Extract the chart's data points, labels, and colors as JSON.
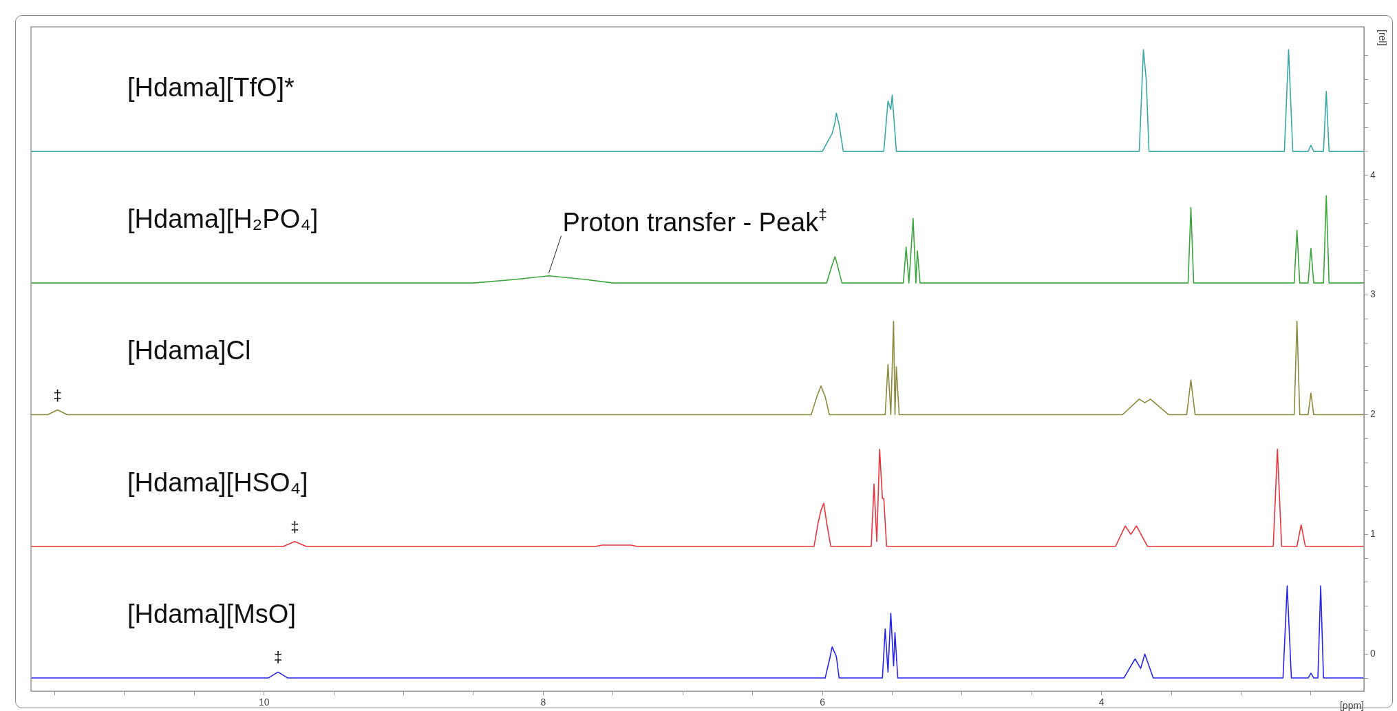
{
  "chart_data": {
    "type": "line",
    "xlabel": "[ppm]",
    "ylabel": "[rel]",
    "xlim": [
      11.67,
      2.12
    ],
    "xticks": [
      {
        "value": 11.5,
        "label": null
      },
      {
        "value": 11,
        "label": null
      },
      {
        "value": 10.5,
        "label": null
      },
      10,
      {
        "value": 9.5,
        "label": null
      },
      {
        "value": 9,
        "label": null
      },
      {
        "value": 8.5,
        "label": null
      },
      8,
      {
        "value": 7.5,
        "label": null
      },
      {
        "value": 7,
        "label": null
      },
      {
        "value": 6.5,
        "label": null
      },
      6,
      {
        "value": 5.5,
        "label": null
      },
      {
        "value": 5,
        "label": null
      },
      {
        "value": 4.5,
        "label": null
      },
      4,
      {
        "value": 3.5,
        "label": null
      },
      {
        "value": 3,
        "label": null
      },
      {
        "value": 2.5,
        "label": null
      }
    ],
    "ylim": [
      -0.31,
      5.24
    ],
    "yticks": [
      {
        "value": -0.2,
        "label": null
      },
      0,
      {
        "value": 0.2,
        "label": null
      },
      {
        "value": 0.4,
        "label": null
      },
      {
        "value": 0.6,
        "label": null
      },
      {
        "value": 0.8,
        "label": null
      },
      1,
      {
        "value": 1.2,
        "label": null
      },
      {
        "value": 1.4,
        "label": null
      },
      {
        "value": 1.6,
        "label": null
      },
      {
        "value": 1.8,
        "label": null
      },
      2,
      {
        "value": 2.2,
        "label": null
      },
      {
        "value": 2.4,
        "label": null
      },
      {
        "value": 2.6,
        "label": null
      },
      {
        "value": 2.8,
        "label": null
      },
      3,
      {
        "value": 3.2,
        "label": null
      },
      {
        "value": 3.4,
        "label": null
      },
      {
        "value": 3.6,
        "label": null
      },
      {
        "value": 3.8,
        "label": null
      },
      4,
      {
        "value": 4.2,
        "label": null
      },
      {
        "value": 4.4,
        "label": null
      },
      {
        "value": 4.6,
        "label": null
      },
      {
        "value": 4.8,
        "label": null
      },
      {
        "value": 5,
        "label": null
      }
    ],
    "grid": false,
    "legend": false,
    "marker": "none",
    "series": [
      {
        "name": "[Hdama][TfO]*",
        "color": "#3aa6a6",
        "x": [
          11.67,
          6.0,
          5.93,
          5.91,
          5.9,
          5.88,
          5.85,
          5.56,
          5.53,
          5.51,
          5.5,
          5.47,
          3.73,
          3.7,
          3.68,
          3.66,
          2.69,
          2.66,
          2.63,
          2.52,
          2.5,
          2.48,
          2.41,
          2.39,
          2.37,
          2.12
        ],
        "values": [
          4.2,
          4.2,
          4.35,
          4.44,
          4.52,
          4.42,
          4.2,
          4.2,
          4.62,
          4.55,
          4.67,
          4.2,
          4.2,
          5.05,
          4.8,
          4.2,
          4.2,
          5.05,
          4.2,
          4.2,
          4.25,
          4.2,
          4.2,
          4.7,
          4.2,
          4.2
        ]
      },
      {
        "name": "[Hdama][H₂PO₄]",
        "color": "#3ca63c",
        "x": [
          11.67,
          8.5,
          8.2,
          7.96,
          7.7,
          7.5,
          5.97,
          5.93,
          5.91,
          5.89,
          5.86,
          5.42,
          5.4,
          5.38,
          5.35,
          5.33,
          5.32,
          5.3,
          3.38,
          3.36,
          3.34,
          2.62,
          2.6,
          2.58,
          2.52,
          2.5,
          2.48,
          2.41,
          2.39,
          2.37,
          2.12
        ],
        "values": [
          3.1,
          3.1,
          3.13,
          3.16,
          3.13,
          3.1,
          3.1,
          3.25,
          3.32,
          3.24,
          3.1,
          3.1,
          3.4,
          3.1,
          3.64,
          3.1,
          3.37,
          3.1,
          3.1,
          3.73,
          3.1,
          3.1,
          3.54,
          3.1,
          3.1,
          3.39,
          3.1,
          3.1,
          3.83,
          3.1,
          3.1
        ]
      },
      {
        "name": "[Hdama]Cl",
        "color": "#8c8a3c",
        "x": [
          11.67,
          11.55,
          11.48,
          11.41,
          6.08,
          6.04,
          6.01,
          5.98,
          5.95,
          5.55,
          5.53,
          5.51,
          5.49,
          5.48,
          5.47,
          5.45,
          3.85,
          3.73,
          3.69,
          3.65,
          3.52,
          3.39,
          3.36,
          3.33,
          2.62,
          2.6,
          2.58,
          2.52,
          2.5,
          2.48,
          2.12
        ],
        "values": [
          2,
          2,
          2.04,
          2,
          2,
          2.15,
          2.24,
          2.15,
          2,
          2,
          2.42,
          2,
          2.78,
          2,
          2.4,
          2,
          2,
          2.13,
          2.1,
          2.13,
          2,
          2,
          2.29,
          2,
          2,
          2.78,
          2,
          2,
          2.18,
          2,
          2
        ]
      },
      {
        "name": "[Hdama][HSO₄]",
        "color": "#e8343a",
        "x": [
          11.67,
          9.86,
          9.78,
          9.7,
          7.62,
          7.58,
          7.37,
          7.33,
          6.06,
          6.03,
          6.01,
          5.99,
          5.97,
          5.94,
          5.65,
          5.63,
          5.61,
          5.59,
          5.57,
          5.56,
          5.54,
          3.9,
          3.83,
          3.79,
          3.75,
          3.67,
          2.77,
          2.74,
          2.71,
          2.6,
          2.57,
          2.54,
          2.12
        ],
        "values": [
          0.9,
          0.9,
          0.94,
          0.9,
          0.9,
          0.91,
          0.91,
          0.9,
          0.9,
          1.1,
          1.2,
          1.26,
          1.1,
          0.9,
          0.9,
          1.42,
          0.94,
          1.71,
          1.3,
          1.3,
          0.9,
          0.9,
          1.07,
          1.0,
          1.07,
          0.9,
          0.9,
          1.71,
          0.9,
          0.9,
          1.08,
          0.9,
          0.9
        ]
      },
      {
        "name": "[Hdama][MsO]",
        "color": "#2424ec",
        "x": [
          11.67,
          9.97,
          9.9,
          9.83,
          5.98,
          5.95,
          5.93,
          5.9,
          5.88,
          5.57,
          5.55,
          5.53,
          5.51,
          5.49,
          5.48,
          5.46,
          3.84,
          3.76,
          3.72,
          3.69,
          3.63,
          2.7,
          2.67,
          2.64,
          2.52,
          2.5,
          2.48,
          2.45,
          2.43,
          2.41,
          2.12
        ],
        "values": [
          -0.2,
          -0.2,
          -0.15,
          -0.2,
          -0.2,
          -0.05,
          0.06,
          -0.02,
          -0.2,
          -0.2,
          0.21,
          -0.15,
          0.34,
          -0.1,
          0.18,
          -0.2,
          -0.2,
          -0.04,
          -0.12,
          0,
          -0.2,
          -0.2,
          0.57,
          -0.2,
          -0.2,
          -0.16,
          -0.2,
          -0.2,
          0.57,
          -0.2,
          -0.2
        ]
      }
    ],
    "annotations": [
      {
        "text": "Proton transfer - Peak$^{‡}$",
        "x": 7.96,
        "y": 3.16
      },
      {
        "text": "‡",
        "x": 11.48,
        "y": 2.04
      },
      {
        "text": "‡",
        "x": 9.78,
        "y": 0.94
      },
      {
        "text": "‡",
        "x": 9.9,
        "y": -0.15
      }
    ]
  }
}
